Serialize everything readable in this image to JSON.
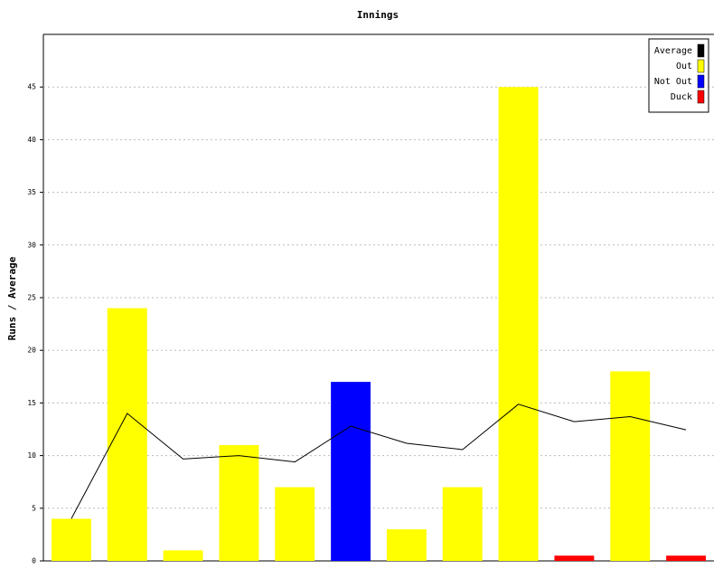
{
  "chart_data": {
    "type": "bar",
    "title": "Innings",
    "y_label": "Runs / Average",
    "categories": [
      null,
      null,
      null,
      null,
      null,
      null,
      null,
      null,
      null,
      null,
      null,
      null
    ],
    "series": [
      {
        "name": "Average",
        "type": "line",
        "color": "#000000",
        "values": [
          4,
          14,
          9.67,
          10,
          9.4,
          12.8,
          11.17,
          10.57,
          14.88,
          13.22,
          13.7,
          12.45
        ]
      },
      {
        "name": "Out",
        "color": "#ffff00",
        "values": [
          4,
          24,
          1,
          11,
          7,
          null,
          3,
          7,
          45,
          null,
          18,
          null
        ]
      },
      {
        "name": "Not Out",
        "color": "#0000ff",
        "values": [
          null,
          null,
          null,
          null,
          null,
          17,
          null,
          null,
          null,
          null,
          null,
          null
        ]
      },
      {
        "name": "Duck",
        "color": "#ff0000",
        "values": [
          null,
          null,
          null,
          null,
          null,
          null,
          null,
          null,
          null,
          0.5,
          null,
          0.5
        ]
      }
    ],
    "ylim": [
      0,
      50
    ],
    "yticks": [
      0,
      5,
      10,
      15,
      20,
      25,
      30,
      35,
      40,
      45
    ],
    "grid": true,
    "legend": "top-right"
  }
}
